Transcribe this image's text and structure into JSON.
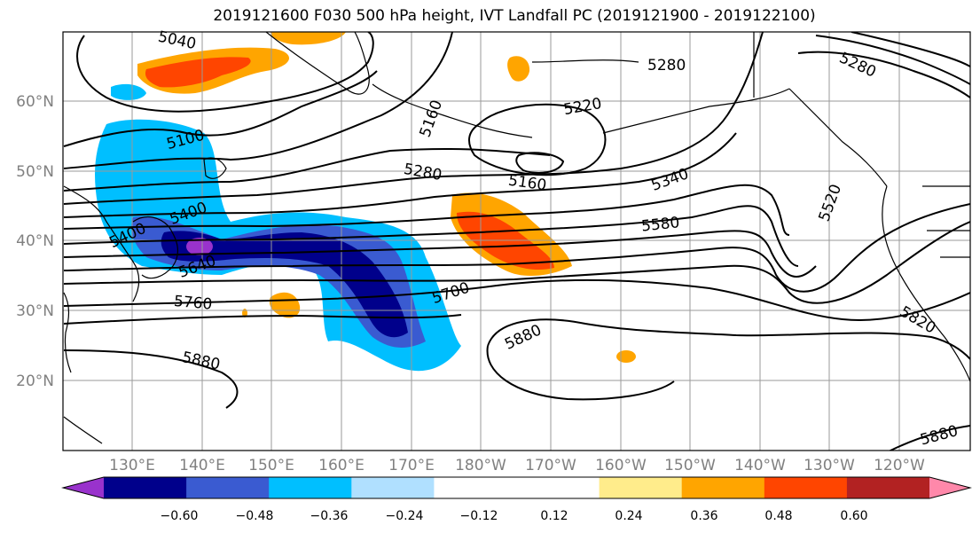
{
  "title": "2019121600 F030 500 hPa height, IVT Landfall PC (2019121900 - 2019122100)",
  "lat_labels": [
    "60°N",
    "50°N",
    "40°N",
    "30°N",
    "20°N"
  ],
  "lon_labels": [
    "130°E",
    "140°E",
    "150°E",
    "160°E",
    "170°E",
    "180°W",
    "170°W",
    "160°W",
    "150°W",
    "140°W",
    "130°W",
    "120°W"
  ],
  "contour_labels": [
    {
      "text": "5040"
    },
    {
      "text": "5160"
    },
    {
      "text": "5220"
    },
    {
      "text": "5280"
    },
    {
      "text": "5280"
    },
    {
      "text": "5280"
    },
    {
      "text": "5160"
    },
    {
      "text": "5340"
    },
    {
      "text": "5520"
    },
    {
      "text": "5580"
    },
    {
      "text": "5700"
    },
    {
      "text": "5760"
    },
    {
      "text": "5880"
    },
    {
      "text": "5880"
    },
    {
      "text": "5820"
    },
    {
      "text": "5880"
    },
    {
      "text": "5400"
    },
    {
      "text": "5400"
    },
    {
      "text": "5640"
    },
    {
      "text": "5100"
    }
  ],
  "colorbar": {
    "colors": [
      "#9932cc",
      "#00008b",
      "#3a5bd1",
      "#00bfff",
      "#b0e0ff",
      "#ffffff",
      "#ffffff",
      "#ffec8b",
      "#ffa500",
      "#ff4500",
      "#b22222",
      "#ff88aa"
    ],
    "ticks": [
      "−0.60",
      "−0.48",
      "−0.36",
      "−0.24",
      "−0.12",
      "0.12",
      "0.24",
      "0.36",
      "0.48",
      "0.60"
    ]
  }
}
